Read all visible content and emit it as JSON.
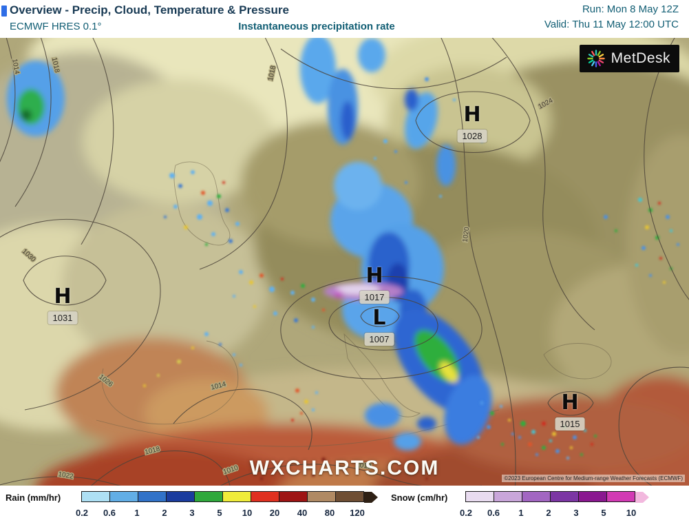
{
  "header": {
    "title": "Overview - Precip, Cloud, Temperature & Pressure",
    "model": "ECMWF HRES 0.1°",
    "subtitle": "Instantaneous precipitation rate",
    "run": "Run: Mon 8 May 12Z",
    "valid": "Valid: Thu 11 May 12:00 UTC"
  },
  "map": {
    "logo_text": "MetDesk",
    "watermark": "WXCHARTS.COM",
    "copyright": "©2023 European Centre for Medium-range Weather Forecasts (ECMWF)",
    "pressure_centers": [
      {
        "letter": "H",
        "value": "1028"
      },
      {
        "letter": "H",
        "value": "1031"
      },
      {
        "letter": "H",
        "value": "1017"
      },
      {
        "letter": "L",
        "value": "1007"
      },
      {
        "letter": "H",
        "value": "1015"
      }
    ],
    "contour_labels": [
      "1014",
      "1018",
      "1018",
      "1030",
      "1026",
      "1022",
      "1018",
      "1014",
      "1010",
      "1010",
      "1020",
      "1024"
    ]
  },
  "legend": {
    "rain": {
      "label": "Rain (mm/hr)",
      "ticks": [
        "0.2",
        "0.6",
        "1",
        "2",
        "3",
        "5",
        "10",
        "20",
        "40",
        "80",
        "120"
      ],
      "colors": [
        "#aee0f4",
        "#62aee6",
        "#3172c8",
        "#1b3c9e",
        "#2fa83c",
        "#f0ec3a",
        "#e03020",
        "#9e1414",
        "#b08a64",
        "#6e4e34",
        "#2e2014"
      ]
    },
    "snow": {
      "label": "Snow (cm/hr)",
      "ticks": [
        "0.2",
        "0.6",
        "1",
        "2",
        "3",
        "5",
        "10"
      ],
      "colors": [
        "#e9dcf0",
        "#c9a6da",
        "#a266c2",
        "#7c36a4",
        "#8a1890",
        "#d23ab4",
        "#f2b8de"
      ]
    }
  }
}
